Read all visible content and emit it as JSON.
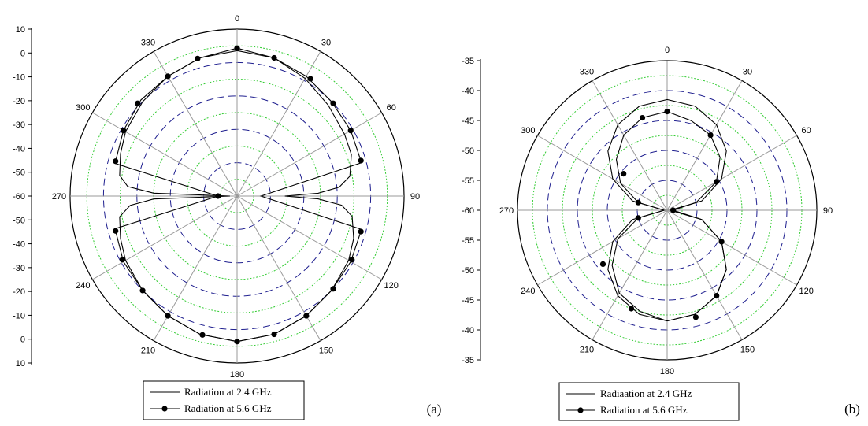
{
  "chart_data": [
    {
      "type": "polar-line",
      "panel_label": "(a)",
      "angular_ticks": [
        0,
        30,
        60,
        90,
        120,
        150,
        180,
        210,
        240,
        270,
        300,
        330
      ],
      "radial_range": [
        -60,
        10
      ],
      "radial_ticks_upper": [
        "10",
        "0",
        "-10",
        "-20",
        "-30",
        "-40",
        "-50",
        "-60"
      ],
      "radial_ticks_lower": [
        "-50",
        "-40",
        "-30",
        "-20",
        "-10",
        "0",
        "10"
      ],
      "grid_major_style": "blue dashed",
      "grid_minor_style": "green dotted",
      "legend": [
        "Radiation at 2.4 GHz",
        "Radiation at 5.6 GHz"
      ],
      "legend_placement": "bottom-center",
      "series": [
        {
          "name": "Radiation at 2.4 GHz",
          "marker": "none",
          "theta": [
            0,
            15,
            30,
            45,
            60,
            70,
            80,
            85,
            88,
            90,
            92,
            95,
            100,
            110,
            120,
            135,
            150,
            165,
            180,
            195,
            210,
            225,
            240,
            250,
            260,
            265,
            268,
            270,
            272,
            275,
            280,
            290,
            300,
            315,
            330,
            345,
            360
          ],
          "r": [
            1,
            0,
            -3,
            -6,
            -8,
            -9,
            -12,
            -17,
            -26,
            -40,
            -26,
            -16,
            -11,
            -8,
            -6,
            -4,
            -2,
            0,
            1,
            0,
            -2,
            -4,
            -6,
            -8,
            -10,
            -15,
            -25,
            -57,
            -25,
            -14,
            -10,
            -8,
            -6,
            -4,
            -2,
            0,
            1
          ]
        },
        {
          "name": "Radiation at 5.6 GHz",
          "marker": "circle",
          "theta": [
            0,
            15,
            30,
            45,
            60,
            75,
            90,
            105,
            120,
            135,
            150,
            165,
            180,
            195,
            210,
            225,
            240,
            255,
            270,
            285,
            300,
            315,
            330,
            345,
            360
          ],
          "r": [
            2,
            0,
            -2,
            -4,
            -5,
            -6,
            -50,
            -6,
            -5,
            -4,
            -2,
            0,
            1,
            0,
            -2,
            -4,
            -5,
            -7,
            -52,
            -7,
            -5,
            -3,
            -2,
            0,
            2
          ],
          "marker_theta": [
            0,
            15,
            32,
            46,
            60,
            74,
            106,
            119,
            134,
            150,
            165,
            180,
            194,
            210,
            225,
            241,
            254,
            270,
            286,
            300,
            313,
            330,
            344
          ],
          "marker_r": [
            2,
            0,
            -2,
            -4,
            -5,
            -6,
            -6,
            -5,
            -4,
            -2,
            0,
            1,
            0,
            -2,
            -4,
            -5,
            -7,
            -52,
            -7,
            -5,
            -3,
            -2,
            0
          ]
        }
      ]
    },
    {
      "type": "polar-line",
      "panel_label": "(b)",
      "angular_ticks": [
        0,
        30,
        60,
        90,
        120,
        150,
        180,
        210,
        240,
        270,
        300,
        330
      ],
      "radial_range": [
        -60,
        -35
      ],
      "radial_ticks_upper": [
        "-35",
        "-40",
        "-45",
        "-50",
        "-55",
        "-60"
      ],
      "radial_ticks_lower": [
        "-55",
        "-50",
        "-45",
        "-40",
        "-35"
      ],
      "grid_major_style": "blue dashed",
      "grid_minor_style": "green dotted",
      "legend": [
        "Radiaation at 2.4 GHz",
        "Radiation at 5.6 GHz"
      ],
      "legend_placement": "bottom-center",
      "series": [
        {
          "name": "Radiaation at 2.4 GHz",
          "marker": "none",
          "theta": [
            0,
            15,
            30,
            45,
            60,
            75,
            90,
            105,
            120,
            135,
            150,
            165,
            180,
            195,
            210,
            225,
            240,
            255,
            270,
            285,
            300,
            315,
            330,
            345,
            360
          ],
          "r": [
            -41.5,
            -42,
            -43.5,
            -46,
            -49.5,
            -54,
            -59.5,
            -54,
            -49.5,
            -46,
            -43.5,
            -42,
            -41.5,
            -42,
            -43.5,
            -46,
            -49.5,
            -54,
            -59.5,
            -54,
            -49.5,
            -46,
            -43.5,
            -42,
            -41.5
          ]
        },
        {
          "name": "Radiation at 5.6 GHz",
          "marker": "circle",
          "theta": [
            0,
            15,
            30,
            45,
            60,
            75,
            90,
            105,
            120,
            135,
            150,
            165,
            180,
            195,
            210,
            225,
            240,
            255,
            270,
            285,
            300,
            315,
            330,
            345,
            360
          ],
          "r": [
            -43.5,
            -44.5,
            -45.5,
            -47.5,
            -50.5,
            -55,
            -59,
            -54,
            -49.5,
            -46,
            -43.5,
            -42,
            -41.5,
            -42.5,
            -44,
            -47,
            -50.5,
            -55,
            -59.5,
            -55,
            -51,
            -48,
            -45.5,
            -44,
            -43.5
          ],
          "marker_theta": [
            0,
            30,
            60,
            90,
            120,
            150,
            165,
            200,
            230,
            255,
            285,
            310,
            345
          ],
          "marker_r": [
            -43.5,
            -45.5,
            -50.5,
            -59,
            -49.5,
            -43.5,
            -41.5,
            -42.5,
            -46,
            -55,
            -55,
            -50.5,
            -44
          ]
        }
      ]
    }
  ]
}
